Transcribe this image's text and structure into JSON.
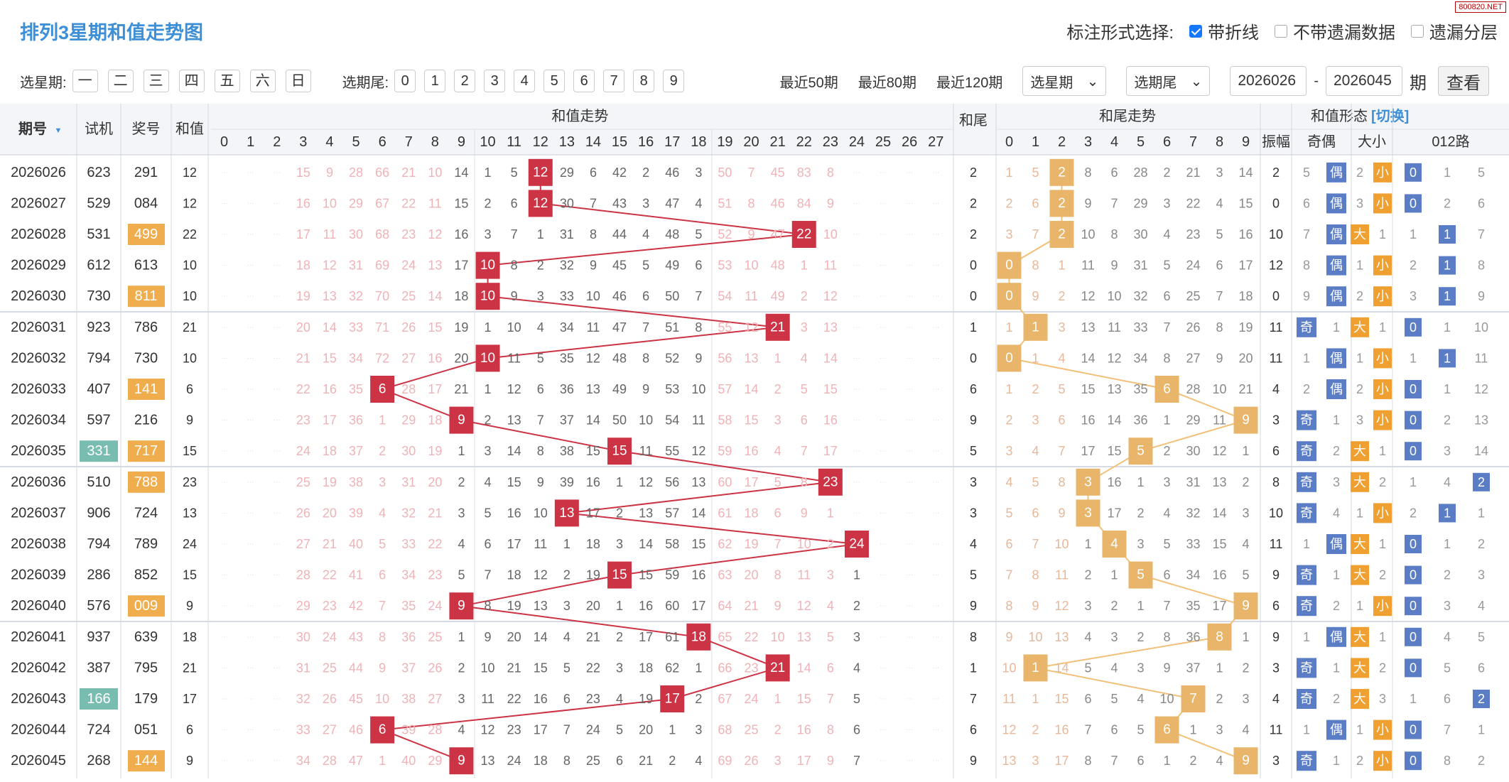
{
  "header": {
    "title": "排列3星期和值走势图",
    "opts_label": "标注形式选择:",
    "opt1": "带折线",
    "opt2": "不带遗漏数据",
    "opt3": "遗漏分层",
    "logo": "800820.NET"
  },
  "filter": {
    "week_label": "选星期:",
    "weekdays": [
      "一",
      "二",
      "三",
      "四",
      "五",
      "六",
      "日"
    ],
    "tail_label": "选期尾:",
    "tails": [
      "0",
      "1",
      "2",
      "3",
      "4",
      "5",
      "6",
      "7",
      "8",
      "9"
    ],
    "recent": [
      "最近50期",
      "最近80期",
      "最近120期"
    ],
    "week_select": "选星期",
    "tail_select": "选期尾",
    "from": "2026026",
    "dash": "-",
    "to": "2026045",
    "unit": "期",
    "query": "查看"
  },
  "columns": {
    "qihao": "期号",
    "shiji": "试机",
    "jianghao": "奖号",
    "hezhi": "和值",
    "sum_trend": "和值走势",
    "sum_axis": [
      "0",
      "1",
      "2",
      "3",
      "4",
      "5",
      "6",
      "7",
      "8",
      "9",
      "10",
      "11",
      "12",
      "13",
      "14",
      "15",
      "16",
      "17",
      "18",
      "19",
      "20",
      "21",
      "22",
      "23",
      "24",
      "25",
      "26",
      "27"
    ],
    "hewei": "和尾",
    "tail_trend": "和尾走势",
    "tail_axis": [
      "0",
      "1",
      "2",
      "3",
      "4",
      "5",
      "6",
      "7",
      "8",
      "9"
    ],
    "form": "和值形态",
    "switch": "[切换]",
    "zhenfu": "振幅",
    "jiou": "奇偶",
    "daxiao": "大小",
    "route": "012路"
  },
  "rows": [
    {
      "q": "2026026",
      "s": "623",
      "j": "291",
      "h": 12,
      "w": 2,
      "z": 2,
      "sum": [
        "·",
        "·",
        "·",
        15,
        9,
        28,
        66,
        21,
        10,
        14,
        1,
        5,
        "H",
        29,
        6,
        42,
        2,
        46,
        3,
        50,
        7,
        45,
        83,
        8,
        "·",
        "·",
        "·",
        "·"
      ],
      "tail": [
        1,
        5,
        "H",
        8,
        6,
        28,
        2,
        21,
        3,
        14
      ],
      "jo": [
        5,
        "偶"
      ],
      "dx": [
        2,
        "小"
      ],
      "r": [
        "0",
        1,
        5
      ]
    },
    {
      "q": "2026027",
      "s": "529",
      "j": "084",
      "h": 12,
      "w": 2,
      "z": 0,
      "sum": [
        "·",
        "·",
        "·",
        16,
        10,
        29,
        67,
        22,
        11,
        15,
        2,
        6,
        "H",
        30,
        7,
        43,
        3,
        47,
        4,
        51,
        8,
        46,
        84,
        9,
        "·",
        "·",
        "·",
        "·"
      ],
      "tail": [
        2,
        6,
        "H",
        9,
        7,
        29,
        3,
        22,
        4,
        15
      ],
      "jo": [
        6,
        "偶"
      ],
      "dx": [
        3,
        "小"
      ],
      "r": [
        "0",
        2,
        6
      ]
    },
    {
      "q": "2026028",
      "s": "531",
      "j": "499",
      "jt": "o",
      "h": 22,
      "w": 2,
      "z": 10,
      "sum": [
        "·",
        "·",
        "·",
        17,
        11,
        30,
        68,
        23,
        12,
        16,
        3,
        7,
        1,
        31,
        8,
        44,
        4,
        48,
        5,
        52,
        9,
        47,
        "H",
        10,
        "·",
        "·",
        "·",
        "·"
      ],
      "tail": [
        3,
        7,
        "H",
        10,
        8,
        30,
        4,
        23,
        5,
        16
      ],
      "jo": [
        7,
        "偶"
      ],
      "dx": [
        "大",
        1
      ],
      "r": [
        1,
        "1",
        7
      ]
    },
    {
      "q": "2026029",
      "s": "612",
      "j": "613",
      "h": 10,
      "w": 0,
      "z": 12,
      "sum": [
        "·",
        "·",
        "·",
        18,
        12,
        31,
        69,
        24,
        13,
        17,
        "H",
        8,
        2,
        32,
        9,
        45,
        5,
        49,
        6,
        53,
        10,
        48,
        1,
        11,
        "·",
        "·",
        "·",
        "·"
      ],
      "tail": [
        "H",
        8,
        1,
        11,
        9,
        31,
        5,
        24,
        6,
        17
      ],
      "jo": [
        8,
        "偶"
      ],
      "dx": [
        1,
        "小"
      ],
      "r": [
        2,
        "1",
        8
      ]
    },
    {
      "q": "2026030",
      "s": "730",
      "j": "811",
      "jt": "o",
      "h": 10,
      "w": 0,
      "z": 0,
      "sum": [
        "·",
        "·",
        "·",
        19,
        13,
        32,
        70,
        25,
        14,
        18,
        "H",
        9,
        3,
        33,
        10,
        46,
        6,
        50,
        7,
        54,
        11,
        49,
        2,
        12,
        "·",
        "·",
        "·",
        "·"
      ],
      "tail": [
        "H",
        9,
        2,
        12,
        10,
        32,
        6,
        25,
        7,
        18
      ],
      "jo": [
        9,
        "偶"
      ],
      "dx": [
        2,
        "小"
      ],
      "r": [
        3,
        "1",
        9
      ]
    },
    {
      "q": "2026031",
      "s": "923",
      "j": "786",
      "h": 21,
      "w": 1,
      "z": 11,
      "sum": [
        "·",
        "·",
        "·",
        20,
        14,
        33,
        71,
        26,
        15,
        19,
        1,
        10,
        4,
        34,
        11,
        47,
        7,
        51,
        8,
        55,
        12,
        "H",
        3,
        13,
        "·",
        "·",
        "·",
        "·"
      ],
      "tail": [
        1,
        "H",
        3,
        13,
        11,
        33,
        7,
        26,
        8,
        19
      ],
      "jo": [
        "奇",
        1
      ],
      "dx": [
        "大",
        1
      ],
      "r": [
        "0",
        1,
        10
      ]
    },
    {
      "q": "2026032",
      "s": "794",
      "j": "730",
      "h": 10,
      "w": 0,
      "z": 11,
      "sum": [
        "·",
        "·",
        "·",
        21,
        15,
        34,
        72,
        27,
        16,
        20,
        "H",
        11,
        5,
        35,
        12,
        48,
        8,
        52,
        9,
        56,
        13,
        1,
        4,
        14,
        "·",
        "·",
        "·",
        "·"
      ],
      "tail": [
        "H",
        1,
        4,
        14,
        12,
        34,
        8,
        27,
        9,
        20
      ],
      "jo": [
        1,
        "偶"
      ],
      "dx": [
        1,
        "小"
      ],
      "r": [
        1,
        "1",
        11
      ]
    },
    {
      "q": "2026033",
      "s": "407",
      "j": "141",
      "jt": "o",
      "h": 6,
      "w": 6,
      "z": 4,
      "sum": [
        "·",
        "·",
        "·",
        22,
        16,
        35,
        "H",
        28,
        17,
        21,
        1,
        12,
        6,
        36,
        13,
        49,
        9,
        53,
        10,
        57,
        14,
        2,
        5,
        15,
        "·",
        "·",
        "·",
        "·"
      ],
      "tail": [
        1,
        2,
        5,
        15,
        13,
        35,
        "H",
        28,
        10,
        21
      ],
      "jo": [
        2,
        "偶"
      ],
      "dx": [
        2,
        "小"
      ],
      "r": [
        "0",
        1,
        12
      ]
    },
    {
      "q": "2026034",
      "s": "597",
      "j": "216",
      "h": 9,
      "w": 9,
      "z": 3,
      "sum": [
        "·",
        "·",
        "·",
        23,
        17,
        36,
        1,
        29,
        18,
        "H",
        2,
        13,
        7,
        37,
        14,
        50,
        10,
        54,
        11,
        58,
        15,
        3,
        6,
        16,
        "·",
        "·",
        "·",
        "·"
      ],
      "tail": [
        2,
        3,
        6,
        16,
        14,
        36,
        1,
        29,
        11,
        "H"
      ],
      "jo": [
        "奇",
        1
      ],
      "dx": [
        3,
        "小"
      ],
      "r": [
        "0",
        2,
        13
      ]
    },
    {
      "q": "2026035",
      "s": "331",
      "st": "t",
      "j": "717",
      "jt": "o",
      "h": 15,
      "w": 5,
      "z": 6,
      "sum": [
        "·",
        "·",
        "·",
        24,
        18,
        37,
        2,
        30,
        19,
        1,
        3,
        14,
        8,
        38,
        15,
        "H",
        11,
        55,
        12,
        59,
        16,
        4,
        7,
        17,
        "·",
        "·",
        "·",
        "·"
      ],
      "tail": [
        3,
        4,
        7,
        17,
        15,
        "H",
        2,
        30,
        12,
        1
      ],
      "jo": [
        "奇",
        2
      ],
      "dx": [
        "大",
        1
      ],
      "r": [
        "0",
        3,
        14
      ]
    },
    {
      "q": "2026036",
      "s": "510",
      "j": "788",
      "jt": "o",
      "h": 23,
      "w": 3,
      "z": 8,
      "sum": [
        "·",
        "·",
        "·",
        25,
        19,
        38,
        3,
        31,
        20,
        2,
        4,
        15,
        9,
        39,
        16,
        1,
        12,
        56,
        13,
        60,
        17,
        5,
        8,
        "H",
        "·",
        "·",
        "·",
        "·"
      ],
      "tail": [
        4,
        5,
        8,
        "H",
        16,
        1,
        3,
        31,
        13,
        2
      ],
      "jo": [
        "奇",
        3
      ],
      "dx": [
        "大",
        2
      ],
      "r": [
        1,
        4,
        "2"
      ]
    },
    {
      "q": "2026037",
      "s": "906",
      "j": "724",
      "h": 13,
      "w": 3,
      "z": 10,
      "sum": [
        "·",
        "·",
        "·",
        26,
        20,
        39,
        4,
        32,
        21,
        3,
        5,
        16,
        10,
        "H",
        17,
        2,
        13,
        57,
        14,
        61,
        18,
        6,
        9,
        1,
        "·",
        "·",
        "·",
        "·"
      ],
      "tail": [
        5,
        6,
        9,
        "H",
        17,
        2,
        4,
        32,
        14,
        3
      ],
      "jo": [
        "奇",
        4
      ],
      "dx": [
        1,
        "小"
      ],
      "r": [
        2,
        "1",
        1
      ]
    },
    {
      "q": "2026038",
      "s": "794",
      "j": "789",
      "h": 24,
      "w": 4,
      "z": 11,
      "sum": [
        "·",
        "·",
        "·",
        27,
        21,
        40,
        5,
        33,
        22,
        4,
        6,
        17,
        11,
        1,
        18,
        3,
        14,
        58,
        15,
        62,
        19,
        7,
        10,
        2,
        "H",
        "·",
        "·",
        "·"
      ],
      "tail": [
        6,
        7,
        10,
        1,
        "H",
        3,
        5,
        33,
        15,
        4
      ],
      "jo": [
        1,
        "偶"
      ],
      "dx": [
        "大",
        1
      ],
      "r": [
        "0",
        1,
        2
      ]
    },
    {
      "q": "2026039",
      "s": "286",
      "j": "852",
      "h": 15,
      "w": 5,
      "z": 9,
      "sum": [
        "·",
        "·",
        "·",
        28,
        22,
        41,
        6,
        34,
        23,
        5,
        7,
        18,
        12,
        2,
        19,
        "H",
        15,
        59,
        16,
        63,
        20,
        8,
        11,
        3,
        1,
        "·",
        "·",
        "·"
      ],
      "tail": [
        7,
        8,
        11,
        2,
        1,
        "H",
        6,
        34,
        16,
        5
      ],
      "jo": [
        "奇",
        1
      ],
      "dx": [
        "大",
        2
      ],
      "r": [
        "0",
        2,
        3
      ]
    },
    {
      "q": "2026040",
      "s": "576",
      "j": "009",
      "jt": "o",
      "h": 9,
      "w": 9,
      "z": 6,
      "sum": [
        "·",
        "·",
        "·",
        29,
        23,
        42,
        7,
        35,
        24,
        "H",
        8,
        19,
        13,
        3,
        20,
        1,
        16,
        60,
        17,
        64,
        21,
        9,
        12,
        4,
        2,
        "·",
        "·",
        "·"
      ],
      "tail": [
        8,
        9,
        12,
        3,
        2,
        1,
        7,
        35,
        17,
        "H"
      ],
      "jo": [
        "奇",
        2
      ],
      "dx": [
        1,
        "小"
      ],
      "r": [
        "0",
        3,
        4
      ]
    },
    {
      "q": "2026041",
      "s": "937",
      "j": "639",
      "h": 18,
      "w": 8,
      "z": 9,
      "sum": [
        "·",
        "·",
        "·",
        30,
        24,
        43,
        8,
        36,
        25,
        1,
        9,
        20,
        14,
        4,
        21,
        2,
        17,
        61,
        "H",
        65,
        22,
        10,
        13,
        5,
        3,
        "·",
        "·",
        "·"
      ],
      "tail": [
        9,
        10,
        13,
        4,
        3,
        2,
        8,
        36,
        "H",
        1
      ],
      "jo": [
        1,
        "偶"
      ],
      "dx": [
        "大",
        1
      ],
      "r": [
        "0",
        4,
        5
      ]
    },
    {
      "q": "2026042",
      "s": "387",
      "j": "795",
      "h": 21,
      "w": 1,
      "z": 3,
      "sum": [
        "·",
        "·",
        "·",
        31,
        25,
        44,
        9,
        37,
        26,
        2,
        10,
        21,
        15,
        5,
        22,
        3,
        18,
        62,
        1,
        66,
        23,
        "H",
        14,
        6,
        4,
        "·",
        "·",
        "·"
      ],
      "tail": [
        10,
        "H",
        14,
        5,
        4,
        3,
        9,
        37,
        1,
        2
      ],
      "jo": [
        "奇",
        1
      ],
      "dx": [
        "大",
        2
      ],
      "r": [
        "0",
        5,
        6
      ]
    },
    {
      "q": "2026043",
      "s": "166",
      "st": "t",
      "j": "179",
      "h": 17,
      "w": 7,
      "z": 4,
      "sum": [
        "·",
        "·",
        "·",
        32,
        26,
        45,
        10,
        38,
        27,
        3,
        11,
        22,
        16,
        6,
        23,
        4,
        19,
        "H",
        2,
        67,
        24,
        1,
        15,
        7,
        5,
        "·",
        "·",
        "·"
      ],
      "tail": [
        11,
        1,
        15,
        6,
        5,
        4,
        10,
        "H",
        2,
        3
      ],
      "jo": [
        "奇",
        2
      ],
      "dx": [
        "大",
        3
      ],
      "r": [
        1,
        6,
        "2"
      ]
    },
    {
      "q": "2026044",
      "s": "724",
      "j": "051",
      "h": 6,
      "w": 6,
      "z": 11,
      "sum": [
        "·",
        "·",
        "·",
        33,
        27,
        46,
        "H",
        39,
        28,
        4,
        12,
        23,
        17,
        7,
        24,
        5,
        20,
        1,
        3,
        68,
        25,
        2,
        16,
        8,
        6,
        "·",
        "·",
        "·"
      ],
      "tail": [
        12,
        2,
        16,
        7,
        6,
        5,
        "H",
        1,
        3,
        4
      ],
      "jo": [
        1,
        "偶"
      ],
      "dx": [
        1,
        "小"
      ],
      "r": [
        "0",
        7,
        1
      ]
    },
    {
      "q": "2026045",
      "s": "268",
      "j": "144",
      "jt": "o",
      "h": 9,
      "w": 9,
      "z": 3,
      "sum": [
        "·",
        "·",
        "·",
        34,
        28,
        47,
        1,
        40,
        29,
        "H",
        13,
        24,
        18,
        8,
        25,
        6,
        21,
        2,
        4,
        69,
        26,
        3,
        17,
        9,
        7,
        "·",
        "·",
        "·"
      ],
      "tail": [
        13,
        3,
        17,
        8,
        7,
        6,
        1,
        2,
        4,
        "H"
      ],
      "jo": [
        "奇",
        1
      ],
      "dx": [
        2,
        "小"
      ],
      "r": [
        "0",
        8,
        2
      ]
    }
  ],
  "colors": {
    "sum_hit": "#cc3344",
    "tail_hit": "#e8b56a",
    "line_sum": "#cc3344",
    "line_tail": "#f2c078",
    "prize_hl": "#f0ad4e",
    "test_hl": "#78bdb0",
    "blue": "#5b7dc6",
    "orange": "#f0a030"
  }
}
